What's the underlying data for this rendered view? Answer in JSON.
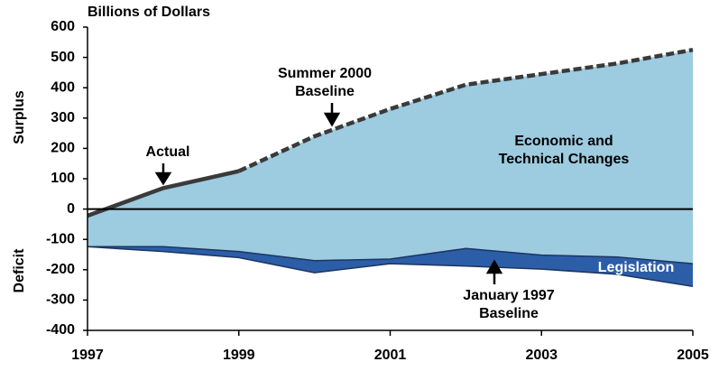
{
  "chart_data": {
    "type": "line",
    "unit_label": "Billions of Dollars",
    "ylabel_top": "Surplus",
    "ylabel_bottom": "Deficit",
    "x": [
      1997,
      1998,
      1999,
      2000,
      2001,
      2002,
      2003,
      2004,
      2005
    ],
    "xlim": [
      1997,
      2005
    ],
    "xticks": [
      1997,
      1999,
      2001,
      2003,
      2005
    ],
    "ylim": [
      -400,
      600
    ],
    "yticks": [
      -400,
      -300,
      -200,
      -100,
      0,
      100,
      200,
      300,
      400,
      500,
      600
    ],
    "series": [
      {
        "name": "Actual",
        "color": "#3a3a3a",
        "dashed": false,
        "values": [
          -22,
          69,
          125,
          null,
          null,
          null,
          null,
          null,
          null
        ]
      },
      {
        "name": "Summer 2000 Baseline",
        "color": "#3a3a3a",
        "dashed": true,
        "values": [
          null,
          null,
          125,
          240,
          330,
          410,
          445,
          480,
          525
        ]
      },
      {
        "color": "#1c3560",
        "fill": "#9dcbe0",
        "values": [
          -124,
          -124,
          -140,
          -170,
          -165,
          -130,
          -152,
          -158,
          -180
        ]
      },
      {
        "name": "January 1997 Baseline",
        "color": "#1c3560",
        "fill": "#2c5ea8",
        "values": [
          -124,
          -140,
          -160,
          -210,
          -180,
          -188,
          -198,
          -215,
          -255
        ]
      }
    ],
    "annotations": [
      "Economic and Technical Changes",
      "Legislation"
    ]
  }
}
